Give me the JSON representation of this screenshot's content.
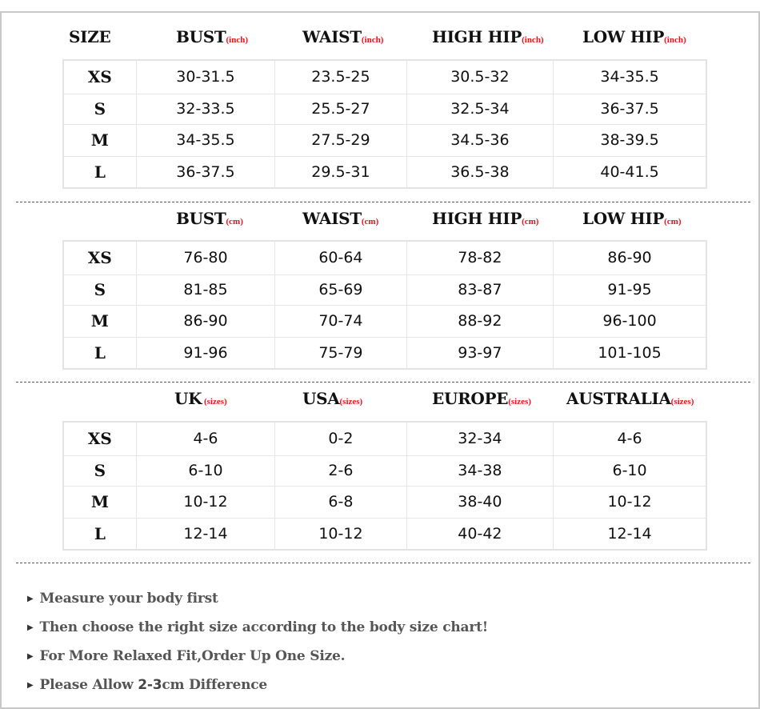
{
  "sections": [
    {
      "first_label": "SIZE",
      "headers": [
        {
          "label": "BUST",
          "unit": "(inch)"
        },
        {
          "label": "WAIST",
          "unit": "(inch)"
        },
        {
          "label": "HIGH HIP",
          "unit": "(inch)"
        },
        {
          "label": "LOW HIP",
          "unit": "(inch)"
        }
      ],
      "rows": [
        [
          "XS",
          "30-31.5",
          "23.5-25",
          "30.5-32",
          "34-35.5"
        ],
        [
          "S",
          "32-33.5",
          "25.5-27",
          "32.5-34",
          "36-37.5"
        ],
        [
          "M",
          "34-35.5",
          "27.5-29",
          "34.5-36",
          "38-39.5"
        ],
        [
          "L",
          "36-37.5",
          "29.5-31",
          "36.5-38",
          "40-41.5"
        ]
      ]
    },
    {
      "headers": [
        {
          "label": "BUST",
          "unit": "(cm)"
        },
        {
          "label": "WAIST",
          "unit": "(cm)"
        },
        {
          "label": "HIGH HIP",
          "unit": "(cm)"
        },
        {
          "label": "LOW HIP",
          "unit": "(cm)"
        }
      ],
      "rows": [
        [
          "XS",
          "76-80",
          "60-64",
          "78-82",
          "86-90"
        ],
        [
          "S",
          "81-85",
          "65-69",
          "83-87",
          "91-95"
        ],
        [
          "M",
          "86-90",
          "70-74",
          "88-92",
          "96-100"
        ],
        [
          "L",
          "91-96",
          "75-79",
          "93-97",
          "101-105"
        ]
      ]
    },
    {
      "headers": [
        {
          "label": "UK",
          "unit": " (sizes)"
        },
        {
          "label": "USA",
          "unit": "(sizes)"
        },
        {
          "label": "EUROPE",
          "unit": "(sizes)"
        },
        {
          "label": "AUSTRALIA",
          "unit": "(sizes)"
        }
      ],
      "rows": [
        [
          "XS",
          "4-6",
          "0-2",
          "32-34",
          "4-6"
        ],
        [
          "S",
          "6-10",
          "2-6",
          "34-38",
          "6-10"
        ],
        [
          "M",
          "10-12",
          "6-8",
          "38-40",
          "10-12"
        ],
        [
          "L",
          "12-14",
          "10-12",
          "40-42",
          "12-14"
        ]
      ]
    }
  ],
  "notes": [
    {
      "text": "Measure your body first"
    },
    {
      "text": "Then choose the right size according to the body size chart!"
    },
    {
      "text": "For More Relaxed Fit,Order Up One Size."
    },
    {
      "pre": "Please Allow ",
      "highlight": "2-3",
      "post": "cm Difference"
    }
  ],
  "colors": {
    "unit_text": "#e8141c",
    "border": "#e3e3e3",
    "note_text": "#555555"
  }
}
